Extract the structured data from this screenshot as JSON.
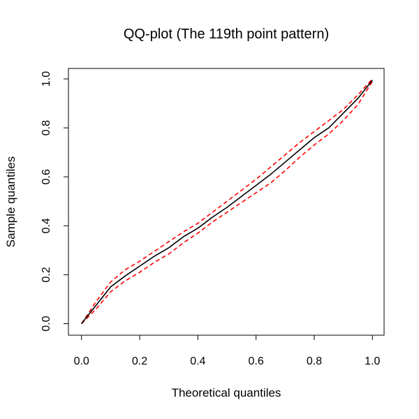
{
  "chart_data": {
    "type": "line",
    "title": "QQ-plot (The 119th point pattern)",
    "xlabel": "Theoretical quantiles",
    "ylabel": "Sample quantiles",
    "xlim": [
      0,
      1
    ],
    "ylim": [
      0,
      1
    ],
    "x_ticks": [
      "0.0",
      "0.2",
      "0.4",
      "0.6",
      "0.8",
      "1.0"
    ],
    "y_ticks": [
      "0.0",
      "0.2",
      "0.4",
      "0.6",
      "0.8",
      "1.0"
    ],
    "grid": false,
    "legend": "none",
    "series": [
      {
        "role": "sample",
        "color": "#000000",
        "dash": "solid",
        "x": [
          0,
          0.05,
          0.1,
          0.15,
          0.2,
          0.25,
          0.3,
          0.35,
          0.4,
          0.45,
          0.5,
          0.55,
          0.6,
          0.65,
          0.7,
          0.75,
          0.8,
          0.85,
          0.9,
          0.95,
          1.0
        ],
        "y": [
          0,
          0.075,
          0.15,
          0.195,
          0.235,
          0.275,
          0.31,
          0.355,
          0.39,
          0.435,
          0.475,
          0.52,
          0.565,
          0.61,
          0.66,
          0.71,
          0.76,
          0.8,
          0.86,
          0.92,
          0.995
        ]
      },
      {
        "role": "upper-envelope",
        "color": "#ff0000",
        "dash": "dashed",
        "x": [
          0,
          0.05,
          0.1,
          0.15,
          0.2,
          0.25,
          0.3,
          0.35,
          0.4,
          0.45,
          0.5,
          0.55,
          0.6,
          0.65,
          0.7,
          0.75,
          0.8,
          0.85,
          0.9,
          0.95,
          1.0
        ],
        "y": [
          0,
          0.09,
          0.17,
          0.22,
          0.255,
          0.295,
          0.335,
          0.375,
          0.41,
          0.455,
          0.5,
          0.545,
          0.59,
          0.64,
          0.69,
          0.74,
          0.785,
          0.83,
          0.875,
          0.935,
          1.0
        ]
      },
      {
        "role": "lower-envelope",
        "color": "#ff0000",
        "dash": "dashed",
        "x": [
          0,
          0.05,
          0.1,
          0.15,
          0.2,
          0.25,
          0.3,
          0.35,
          0.4,
          0.45,
          0.5,
          0.55,
          0.6,
          0.65,
          0.7,
          0.75,
          0.8,
          0.85,
          0.9,
          0.95,
          1.0
        ],
        "y": [
          0,
          0.06,
          0.13,
          0.175,
          0.21,
          0.25,
          0.285,
          0.33,
          0.37,
          0.415,
          0.455,
          0.495,
          0.535,
          0.575,
          0.625,
          0.68,
          0.73,
          0.775,
          0.83,
          0.895,
          0.99
        ]
      }
    ]
  }
}
